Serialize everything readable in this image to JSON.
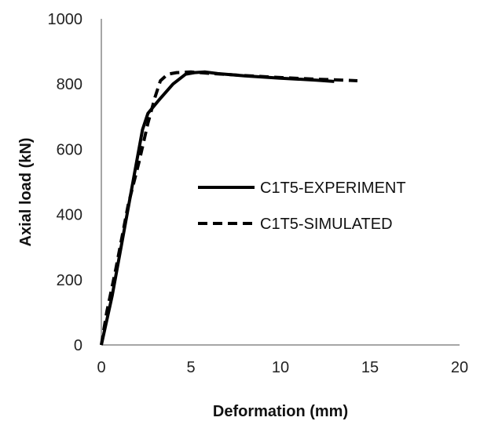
{
  "chart_data": {
    "type": "line",
    "title": "",
    "xlabel": "Deformation (mm)",
    "ylabel": "Axial load (kN)",
    "xlim": [
      0,
      20
    ],
    "ylim": [
      0,
      1000
    ],
    "xticks": [
      0,
      5,
      10,
      15,
      20
    ],
    "yticks": [
      0,
      200,
      400,
      600,
      800,
      1000
    ],
    "grid": false,
    "legend_position": "center-right",
    "series": [
      {
        "name": "C1T5-EXPERIMENT",
        "style": "solid",
        "color": "#000000",
        "x": [
          0,
          0.6,
          1.2,
          1.8,
          2.3,
          2.6,
          3.2,
          4.0,
          4.7,
          5.2,
          5.8,
          6.5,
          8.0,
          10.0,
          12.0,
          13.0
        ],
        "y": [
          0,
          150,
          330,
          510,
          660,
          710,
          750,
          800,
          830,
          835,
          837,
          832,
          825,
          818,
          812,
          808
        ]
      },
      {
        "name": "C1T5-SIMULATED",
        "style": "dashed",
        "color": "#000000",
        "x": [
          0,
          0.3,
          0.8,
          1.5,
          2.1,
          2.6,
          3.0,
          3.3,
          3.7,
          4.2,
          5.0,
          6.0,
          8.0,
          10.0,
          12.0,
          13.5,
          14.3
        ],
        "y": [
          0,
          100,
          230,
          430,
          560,
          680,
          760,
          810,
          830,
          835,
          837,
          833,
          826,
          820,
          815,
          812,
          810
        ]
      }
    ]
  }
}
